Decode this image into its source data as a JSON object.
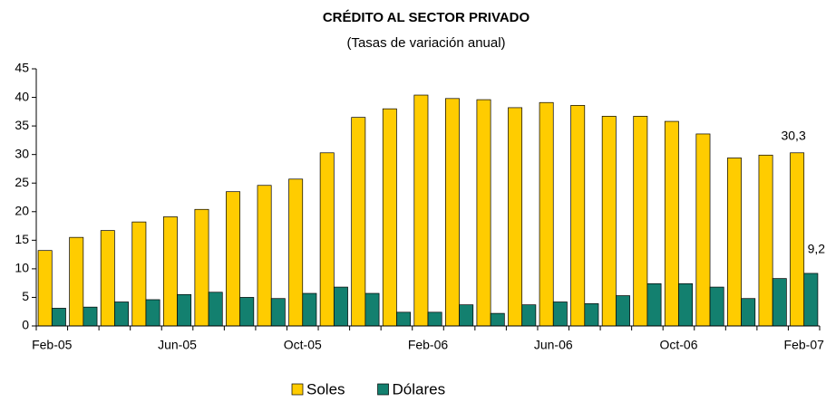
{
  "chart_data": {
    "type": "bar",
    "title": "CRÉDITO AL SECTOR PRIVADO",
    "subtitle": "(Tasas de variación anual)",
    "categories": [
      "Feb-05",
      null,
      null,
      null,
      "Jun-05",
      null,
      null,
      null,
      "Oct-05",
      null,
      null,
      null,
      "Feb-06",
      null,
      null,
      null,
      "Jun-06",
      null,
      null,
      null,
      "Oct-06",
      null,
      null,
      null,
      "Feb-07"
    ],
    "series": [
      {
        "name": "Soles",
        "color": "#ffcc00",
        "values": [
          13.2,
          15.5,
          16.7,
          18.2,
          19.1,
          20.4,
          23.5,
          24.6,
          25.7,
          30.3,
          36.5,
          38.0,
          40.4,
          39.8,
          39.6,
          38.2,
          39.1,
          38.6,
          36.7,
          36.7,
          35.8,
          33.6,
          29.4,
          29.9,
          30.3
        ],
        "value_labels": [
          null,
          null,
          null,
          null,
          null,
          null,
          null,
          null,
          null,
          null,
          null,
          null,
          null,
          null,
          null,
          null,
          null,
          null,
          null,
          null,
          null,
          null,
          null,
          null,
          "30,3"
        ]
      },
      {
        "name": "Dólares",
        "color": "#13806f",
        "values": [
          3.1,
          3.3,
          4.2,
          4.6,
          5.5,
          5.9,
          5.0,
          4.8,
          5.7,
          6.8,
          5.7,
          2.4,
          2.4,
          3.7,
          2.2,
          3.7,
          4.2,
          3.9,
          5.3,
          7.4,
          7.4,
          6.8,
          4.8,
          8.3,
          9.2
        ],
        "value_labels": [
          null,
          null,
          null,
          null,
          null,
          null,
          null,
          null,
          null,
          null,
          null,
          null,
          null,
          null,
          null,
          null,
          null,
          null,
          null,
          null,
          null,
          null,
          null,
          null,
          "9,2"
        ]
      }
    ],
    "ylim": [
      0,
      45
    ],
    "yticks": [
      0,
      5,
      10,
      15,
      20,
      25,
      30,
      35,
      40,
      45
    ],
    "grid": false
  }
}
